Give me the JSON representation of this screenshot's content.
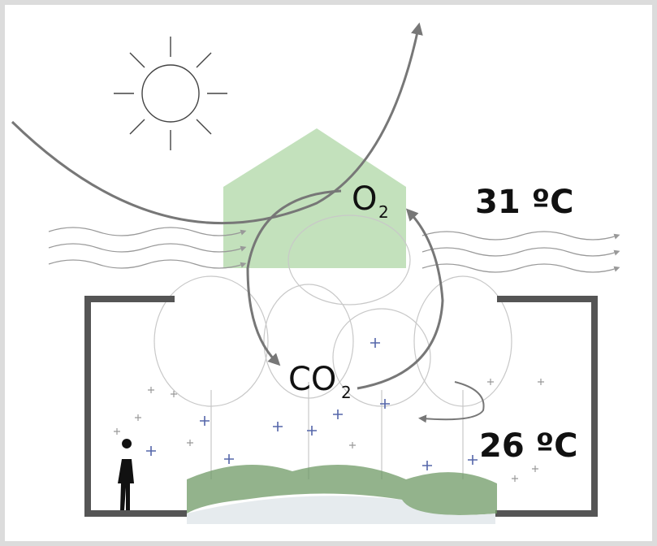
{
  "labels": {
    "o2": {
      "main": "O",
      "sub": "2"
    },
    "co2": {
      "main": "CO",
      "sub": "2"
    },
    "outside_temp": "31 ºC",
    "inside_temp": "26 ºC"
  }
}
